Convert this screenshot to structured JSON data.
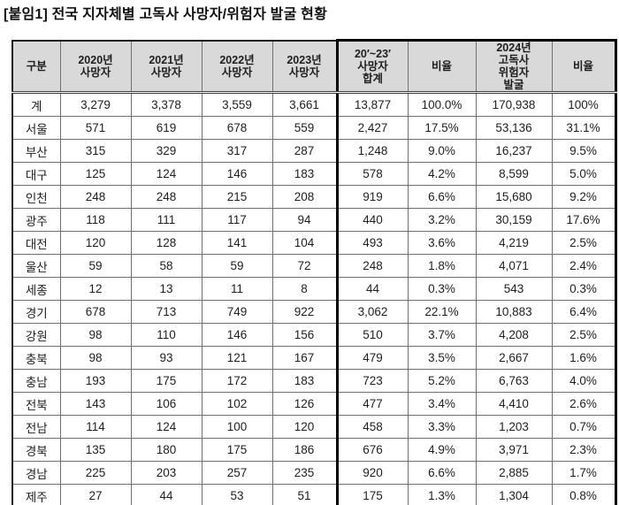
{
  "title": "[붙임1] 전국 지자체별 고독사 사망자/위험자 발굴 현황",
  "table": {
    "columns": [
      {
        "id": "gubun",
        "label": "구분"
      },
      {
        "id": "deaths-2020",
        "label": "2020년\n사망자"
      },
      {
        "id": "deaths-2021",
        "label": "2021년\n사망자"
      },
      {
        "id": "deaths-2022",
        "label": "2022년\n사망자"
      },
      {
        "id": "deaths-2023",
        "label": "2023년\n사망자"
      },
      {
        "id": "deaths-total-20-23",
        "label": "20′~23′\n사망자\n합계"
      },
      {
        "id": "deaths-ratio",
        "label": "비율"
      },
      {
        "id": "risk-found-2024",
        "label": "2024년\n고독사\n위험자\n발굴"
      },
      {
        "id": "risk-ratio",
        "label": "비율"
      }
    ],
    "rows": [
      {
        "region": "계",
        "values": [
          "3,279",
          "3,378",
          "3,559",
          "3,661",
          "13,877",
          "100.0%",
          "170,938",
          "100%"
        ]
      },
      {
        "region": "서울",
        "values": [
          "571",
          "619",
          "678",
          "559",
          "2,427",
          "17.5%",
          "53,136",
          "31.1%"
        ]
      },
      {
        "region": "부산",
        "values": [
          "315",
          "329",
          "317",
          "287",
          "1,248",
          "9.0%",
          "16,237",
          "9.5%"
        ]
      },
      {
        "region": "대구",
        "values": [
          "125",
          "124",
          "146",
          "183",
          "578",
          "4.2%",
          "8,599",
          "5.0%"
        ]
      },
      {
        "region": "인천",
        "values": [
          "248",
          "248",
          "215",
          "208",
          "919",
          "6.6%",
          "15,680",
          "9.2%"
        ]
      },
      {
        "region": "광주",
        "values": [
          "118",
          "111",
          "117",
          "94",
          "440",
          "3.2%",
          "30,159",
          "17.6%"
        ]
      },
      {
        "region": "대전",
        "values": [
          "120",
          "128",
          "141",
          "104",
          "493",
          "3.6%",
          "4,219",
          "2.5%"
        ]
      },
      {
        "region": "울산",
        "values": [
          "59",
          "58",
          "59",
          "72",
          "248",
          "1.8%",
          "4,071",
          "2.4%"
        ]
      },
      {
        "region": "세종",
        "values": [
          "12",
          "13",
          "11",
          "8",
          "44",
          "0.3%",
          "543",
          "0.3%"
        ]
      },
      {
        "region": "경기",
        "values": [
          "678",
          "713",
          "749",
          "922",
          "3,062",
          "22.1%",
          "10,883",
          "6.4%"
        ]
      },
      {
        "region": "강원",
        "values": [
          "98",
          "110",
          "146",
          "156",
          "510",
          "3.7%",
          "4,208",
          "2.5%"
        ]
      },
      {
        "region": "충북",
        "values": [
          "98",
          "93",
          "121",
          "167",
          "479",
          "3.5%",
          "2,667",
          "1.6%"
        ]
      },
      {
        "region": "충남",
        "values": [
          "193",
          "175",
          "172",
          "183",
          "723",
          "5.2%",
          "6,763",
          "4.0%"
        ]
      },
      {
        "region": "전북",
        "values": [
          "143",
          "106",
          "102",
          "126",
          "477",
          "3.4%",
          "4,410",
          "2.6%"
        ]
      },
      {
        "region": "전남",
        "values": [
          "114",
          "124",
          "100",
          "120",
          "458",
          "3.3%",
          "1,203",
          "0.7%"
        ]
      },
      {
        "region": "경북",
        "values": [
          "135",
          "180",
          "175",
          "186",
          "676",
          "4.9%",
          "3,971",
          "2.3%"
        ]
      },
      {
        "region": "경남",
        "values": [
          "225",
          "203",
          "257",
          "235",
          "920",
          "6.6%",
          "2,885",
          "1.7%"
        ]
      },
      {
        "region": "제주",
        "values": [
          "27",
          "44",
          "53",
          "51",
          "175",
          "1.3%",
          "1,304",
          "0.8%"
        ]
      }
    ]
  }
}
